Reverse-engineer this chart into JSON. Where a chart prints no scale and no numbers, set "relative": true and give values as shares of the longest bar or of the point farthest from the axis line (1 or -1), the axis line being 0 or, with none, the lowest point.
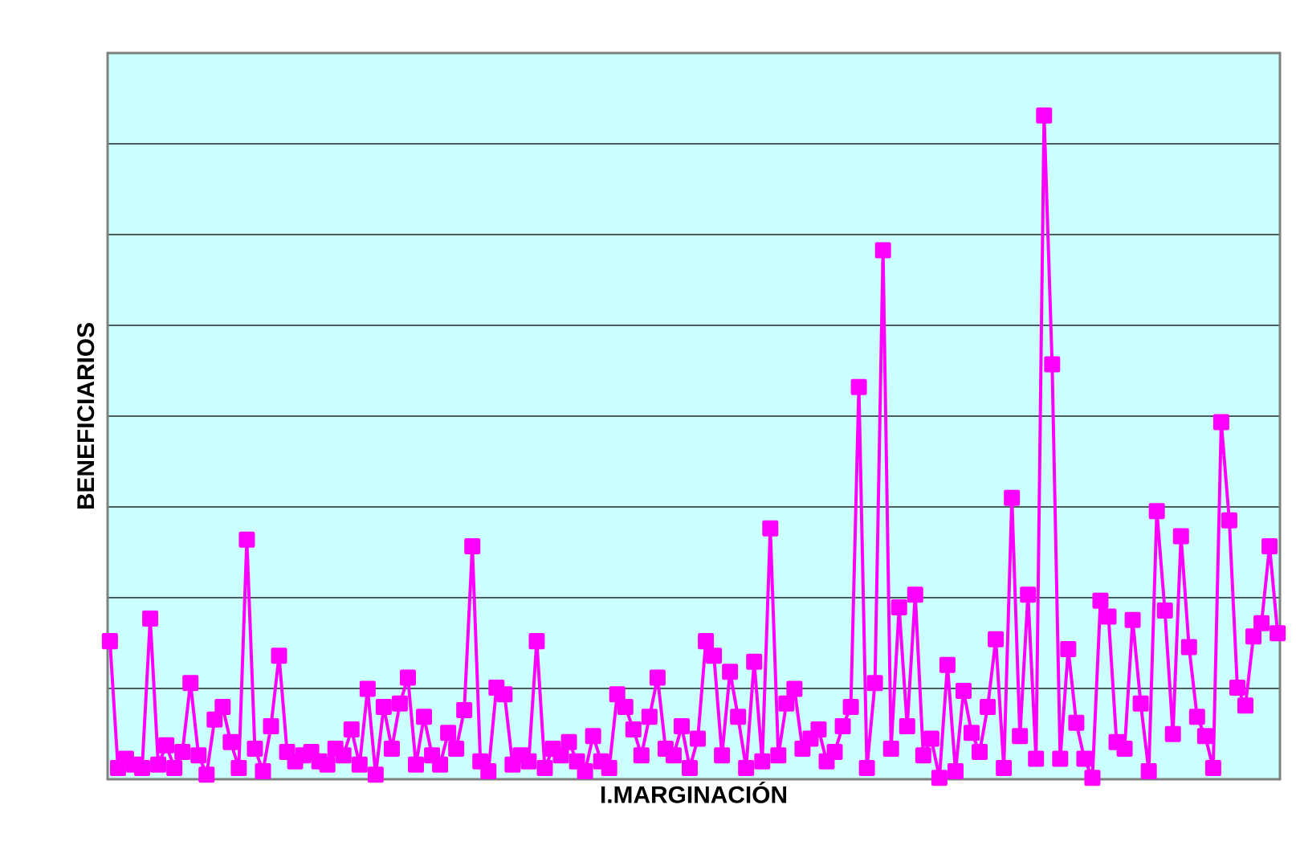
{
  "chart_data": {
    "type": "line",
    "xlabel": "I.MARGINACIÓN",
    "ylabel": "BENEFICIARIOS",
    "relative": true,
    "grid": "y",
    "tick_labels": false,
    "marker": "square",
    "color": "#ff00ff",
    "categories": [
      null,
      null,
      null,
      null,
      null,
      null,
      null,
      null,
      null,
      null,
      null,
      null,
      null,
      null,
      null,
      null,
      null,
      null,
      null,
      null,
      null,
      null,
      null,
      null,
      null,
      null,
      null,
      null,
      null,
      null,
      null,
      null,
      null,
      null,
      null,
      null,
      null,
      null,
      null,
      null,
      null,
      null,
      null,
      null,
      null,
      null,
      null,
      null,
      null,
      null,
      null,
      null,
      null,
      null,
      null,
      null,
      null,
      null,
      null,
      null,
      null,
      null,
      null,
      null,
      null,
      null,
      null,
      null,
      null,
      null,
      null,
      null,
      null,
      null,
      null,
      null,
      null,
      null,
      null,
      null,
      null,
      null,
      null,
      null,
      null,
      null,
      null,
      null,
      null,
      null,
      null,
      null,
      null,
      null,
      null,
      null,
      null,
      null,
      null,
      null,
      null,
      null,
      null,
      null,
      null,
      null,
      null,
      null,
      null,
      null,
      null,
      null,
      null,
      null,
      null,
      null,
      null,
      null,
      null,
      null,
      null,
      null,
      null,
      null,
      null,
      null,
      null,
      null,
      null,
      null,
      null,
      null,
      null,
      null,
      null,
      null,
      null,
      null,
      null,
      null,
      null,
      null,
      null,
      null,
      null,
      null
    ],
    "values": [
      0.208,
      0.017,
      0.031,
      0.022,
      0.017,
      0.242,
      0.022,
      0.051,
      0.017,
      0.041,
      0.145,
      0.036,
      0.007,
      0.09,
      0.109,
      0.056,
      0.017,
      0.361,
      0.046,
      0.012,
      0.08,
      0.186,
      0.041,
      0.027,
      0.036,
      0.041,
      0.027,
      0.022,
      0.046,
      0.036,
      0.075,
      0.022,
      0.136,
      0.007,
      0.109,
      0.046,
      0.114,
      0.153,
      0.022,
      0.094,
      0.036,
      0.022,
      0.07,
      0.046,
      0.104,
      0.351,
      0.027,
      0.012,
      0.138,
      0.128,
      0.022,
      0.036,
      0.027,
      0.208,
      0.017,
      0.046,
      0.036,
      0.056,
      0.027,
      0.012,
      0.065,
      0.027,
      0.017,
      0.128,
      0.109,
      0.075,
      0.036,
      0.094,
      0.153,
      0.046,
      0.036,
      0.08,
      0.017,
      0.061,
      0.208,
      0.186,
      0.036,
      0.162,
      0.094,
      0.017,
      0.177,
      0.027,
      0.378,
      0.036,
      0.114,
      0.136,
      0.046,
      0.061,
      0.075,
      0.027,
      0.041,
      0.08,
      0.109,
      0.591,
      0.017,
      0.145,
      0.797,
      0.046,
      0.259,
      0.08,
      0.278,
      0.036,
      0.061,
      0.002,
      0.172,
      0.012,
      0.133,
      0.07,
      0.041,
      0.109,
      0.211,
      0.017,
      0.424,
      0.065,
      0.278,
      0.031,
      1,
      0.625,
      0.031,
      0.196,
      0.085,
      0.031,
      0.002,
      0.269,
      0.245,
      0.056,
      0.046,
      0.24,
      0.114,
      0.012,
      0.404,
      0.254,
      0.068,
      0.366,
      0.199,
      0.094,
      0.065,
      0.017,
      0.538,
      0.39,
      0.138,
      0.111,
      0.215,
      0.235,
      0.351,
      0.22
    ]
  }
}
